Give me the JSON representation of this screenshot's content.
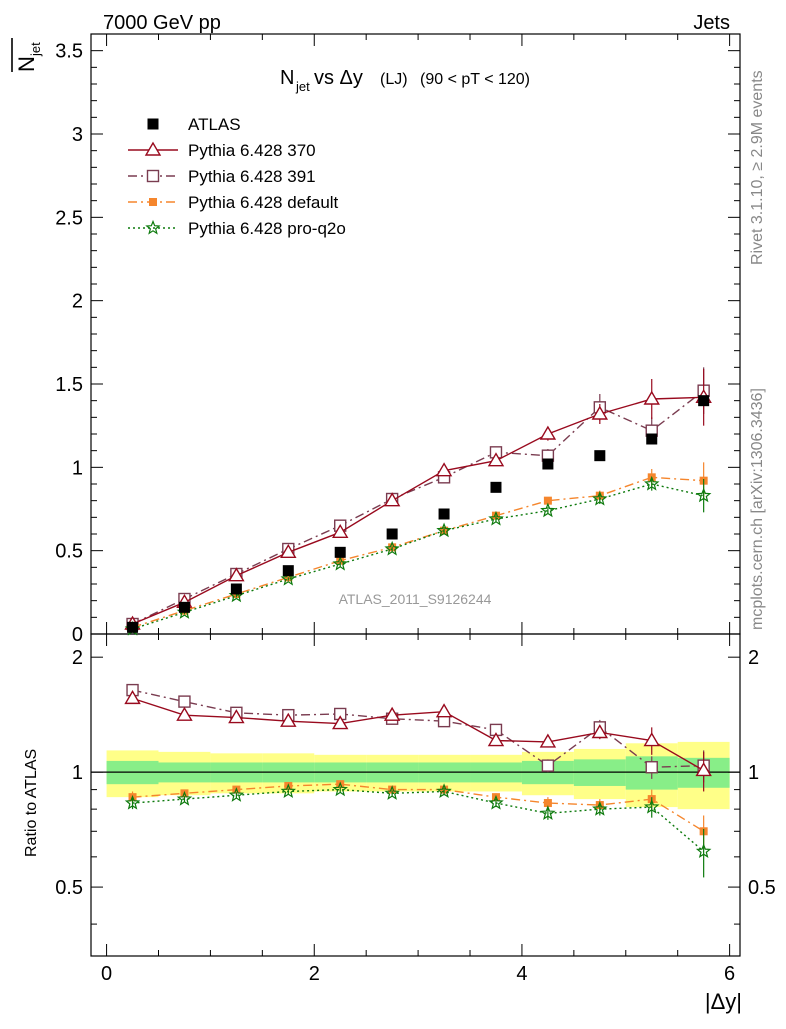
{
  "header": {
    "left": "7000 GeV pp",
    "right": "Jets"
  },
  "title": {
    "main": "N",
    "main_sub": "jet",
    "vs": " vs Δy",
    "lj": "(LJ)",
    "range": "(90 < pT < 120)"
  },
  "side_labels": {
    "rivet": "Rivet 3.1.10, ≥ 2.9M events",
    "mcplots": "mcplots.cern.ch [arXiv:1306.3436]"
  },
  "watermark": "ATLAS_2011_S9126244",
  "axes": {
    "ylabel_main": "N",
    "ylabel_main_sub": "jet",
    "ylabel_ratio": "Ratio to ATLAS",
    "xlabel": "|Δy|"
  },
  "colors": {
    "atlas": "#000000",
    "p370": "#990a1e",
    "p391": "#7a3c50",
    "pdefault": "#f5862d",
    "pq2o": "#0d7a0d",
    "band_yellow": "#ffff88",
    "band_green": "#88ee88"
  },
  "chart_data": {
    "type": "scatter",
    "x": [
      0.25,
      0.75,
      1.25,
      1.75,
      2.25,
      2.75,
      3.25,
      3.75,
      4.25,
      4.75,
      5.25,
      5.75
    ],
    "xlim": [
      -0.15,
      6.1
    ],
    "xticks": [
      0,
      2,
      4,
      6
    ],
    "main": {
      "ylim": [
        0,
        3.6
      ],
      "yticks": [
        0,
        0.5,
        1,
        1.5,
        2,
        2.5,
        3,
        3.5
      ],
      "ytick_labels": [
        "0",
        "0.5",
        "1",
        "1.5",
        "2",
        "2.5",
        "3",
        "3.5"
      ]
    },
    "ratio": {
      "ylim": [
        0.33,
        2.3
      ],
      "yticks": [
        0.5,
        1,
        2
      ],
      "ytick_labels": [
        "0.5",
        "1",
        "2"
      ],
      "stat_band": [
        0.07,
        0.06,
        0.06,
        0.06,
        0.06,
        0.06,
        0.06,
        0.06,
        0.07,
        0.08,
        0.1,
        0.09
      ],
      "total_band": [
        0.14,
        0.13,
        0.12,
        0.12,
        0.11,
        0.11,
        0.11,
        0.11,
        0.13,
        0.15,
        0.19,
        0.2
      ]
    },
    "series": [
      {
        "name": "ATLAS",
        "key": "atlas",
        "marker": "square_filled",
        "line": "none",
        "values": [
          0.04,
          0.16,
          0.27,
          0.38,
          0.49,
          0.6,
          0.72,
          0.88,
          1.02,
          1.07,
          1.17,
          1.4
        ],
        "errors": [
          0.005,
          0.01,
          0.01,
          0.01,
          0.01,
          0.015,
          0.015,
          0.015,
          0.02,
          0.02,
          0.03,
          0.03
        ],
        "ratio": [
          1,
          1,
          1,
          1,
          1,
          1,
          1,
          1,
          1,
          1,
          1,
          1
        ]
      },
      {
        "name": "Pythia 6.428 370",
        "key": "p370",
        "marker": "triangle_open",
        "line": "solid",
        "values": [
          0.06,
          0.19,
          0.35,
          0.49,
          0.61,
          0.8,
          0.98,
          1.04,
          1.2,
          1.32,
          1.41,
          1.42
        ],
        "errors": [
          0.005,
          0.01,
          0.01,
          0.02,
          0.02,
          0.02,
          0.03,
          0.03,
          0.04,
          0.06,
          0.12,
          0.17
        ],
        "ratio": [
          1.56,
          1.41,
          1.39,
          1.36,
          1.34,
          1.41,
          1.44,
          1.21,
          1.2,
          1.27,
          1.21,
          1.01
        ],
        "ratio_errors": [
          0.03,
          0.02,
          0.02,
          0.02,
          0.02,
          0.02,
          0.03,
          0.03,
          0.04,
          0.05,
          0.1,
          0.12
        ]
      },
      {
        "name": "Pythia 6.428 391",
        "key": "p391",
        "marker": "square_open",
        "line": "dashdot",
        "values": [
          0.06,
          0.21,
          0.36,
          0.51,
          0.65,
          0.81,
          0.94,
          1.09,
          1.07,
          1.36,
          1.22,
          1.46
        ],
        "errors": [
          0.005,
          0.01,
          0.01,
          0.02,
          0.02,
          0.02,
          0.03,
          0.03,
          0.04,
          0.08,
          0.08,
          0.14
        ],
        "ratio": [
          1.64,
          1.53,
          1.43,
          1.41,
          1.42,
          1.38,
          1.36,
          1.29,
          1.04,
          1.31,
          1.03,
          1.04
        ],
        "ratio_errors": [
          0.03,
          0.02,
          0.02,
          0.02,
          0.02,
          0.02,
          0.03,
          0.03,
          0.04,
          0.06,
          0.07,
          0.1
        ]
      },
      {
        "name": "Pythia 6.428 default",
        "key": "pdefault",
        "marker": "square_filled_small",
        "line": "dashdot",
        "values": [
          0.04,
          0.14,
          0.24,
          0.34,
          0.44,
          0.52,
          0.62,
          0.71,
          0.8,
          0.83,
          0.94,
          0.92
        ],
        "errors": [
          0.005,
          0.01,
          0.01,
          0.01,
          0.015,
          0.015,
          0.02,
          0.02,
          0.02,
          0.03,
          0.05,
          0.11
        ],
        "ratio": [
          0.86,
          0.88,
          0.9,
          0.92,
          0.93,
          0.9,
          0.9,
          0.86,
          0.83,
          0.82,
          0.85,
          0.7
        ],
        "ratio_errors": [
          0.03,
          0.015,
          0.015,
          0.015,
          0.015,
          0.015,
          0.02,
          0.02,
          0.03,
          0.03,
          0.05,
          0.07
        ]
      },
      {
        "name": "Pythia 6.428 pro-q2o",
        "key": "pq2o",
        "marker": "star_open",
        "line": "dotted",
        "values": [
          0.03,
          0.13,
          0.23,
          0.33,
          0.42,
          0.51,
          0.62,
          0.69,
          0.74,
          0.81,
          0.9,
          0.83
        ],
        "errors": [
          0.005,
          0.01,
          0.01,
          0.01,
          0.015,
          0.015,
          0.02,
          0.02,
          0.02,
          0.03,
          0.04,
          0.1
        ],
        "ratio": [
          0.83,
          0.85,
          0.87,
          0.89,
          0.9,
          0.88,
          0.89,
          0.83,
          0.78,
          0.8,
          0.81,
          0.62
        ],
        "ratio_errors": [
          0.03,
          0.015,
          0.015,
          0.015,
          0.015,
          0.015,
          0.02,
          0.02,
          0.03,
          0.03,
          0.05,
          0.09
        ]
      }
    ]
  }
}
